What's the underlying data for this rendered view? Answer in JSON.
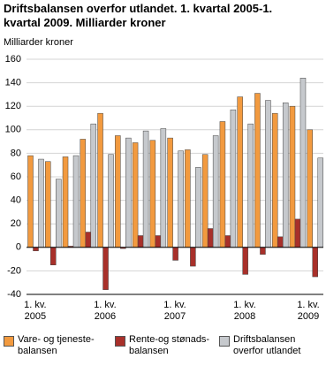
{
  "chart_data": {
    "type": "bar",
    "title": "Driftsbalansen overfor utlandet. 1. kvartal 2005-1. kvartal 2009. Milliarder kroner",
    "y_label": "Milliarder kroner",
    "categories": [
      "1. kv.\n2005",
      null,
      null,
      null,
      "1. kv.\n2006",
      null,
      null,
      null,
      "1. kv.\n2007",
      null,
      null,
      null,
      "1. kv.\n2008",
      null,
      null,
      null,
      "1. kv.\n2009"
    ],
    "series": [
      {
        "name": "Vare- og tjeneste-\nbalansen",
        "color": "#f29a3f",
        "values": [
          78,
          73,
          77,
          92,
          114,
          95,
          89,
          91,
          93,
          83,
          79,
          107,
          128,
          131,
          114,
          120,
          100
        ]
      },
      {
        "name": "Rente-og stønads-\nbalansen",
        "color": "#a8302a",
        "values": [
          -3,
          -15,
          1,
          13,
          -36,
          -1,
          10,
          10,
          -11,
          -16,
          16,
          10,
          -23,
          -6,
          9,
          24,
          -25
        ]
      },
      {
        "name": "Driftsbalansen\noverfor utlandet",
        "color": "#c6c9cd",
        "values": [
          75,
          58,
          78,
          105,
          79,
          93,
          99,
          101,
          82,
          68,
          95,
          117,
          105,
          125,
          123,
          144,
          76
        ]
      }
    ],
    "ylim": [
      -40,
      160
    ],
    "yticks": [
      -40,
      -20,
      0,
      20,
      40,
      60,
      80,
      100,
      120,
      140,
      160
    ],
    "grid": true,
    "legend": "bottom"
  }
}
